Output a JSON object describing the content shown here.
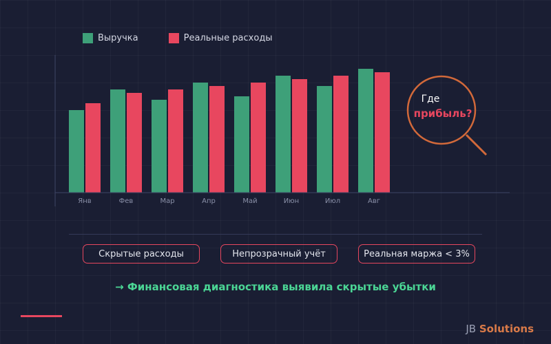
{
  "colors": {
    "revenue": "#3ea079",
    "expenses": "#e8475f",
    "axis": "#3b4263",
    "magnifier": "#d2693a",
    "summary": "#4bd695",
    "brand": "#d97a48"
  },
  "legend": {
    "revenue_label": "Выручка",
    "expenses_label": "Реальные расходы"
  },
  "chart_data": {
    "type": "bar",
    "categories": [
      "Янв",
      "Фев",
      "Мар",
      "Апр",
      "Май",
      "Июн",
      "Июл",
      "Авг"
    ],
    "series": [
      {
        "name": "Выручка",
        "values": [
          120,
          150,
          135,
          160,
          140,
          170,
          155,
          180
        ]
      },
      {
        "name": "Реальные расходы",
        "values": [
          130,
          145,
          150,
          155,
          160,
          165,
          170,
          175
        ]
      }
    ],
    "ylim": [
      0,
      200
    ],
    "legend_position": "top-left",
    "grid": false
  },
  "magnifier": {
    "question_line1": "Где",
    "question_line2": "прибыль?"
  },
  "tags": [
    {
      "label": "Скрытые расходы"
    },
    {
      "label": "Непрозрачный учёт"
    },
    {
      "label": "Реальная маржа < 3%"
    }
  ],
  "summary": "→ Финансовая диагностика выявила скрытые убытки",
  "brand": {
    "prefix": "JB",
    "name": "Solutions"
  }
}
